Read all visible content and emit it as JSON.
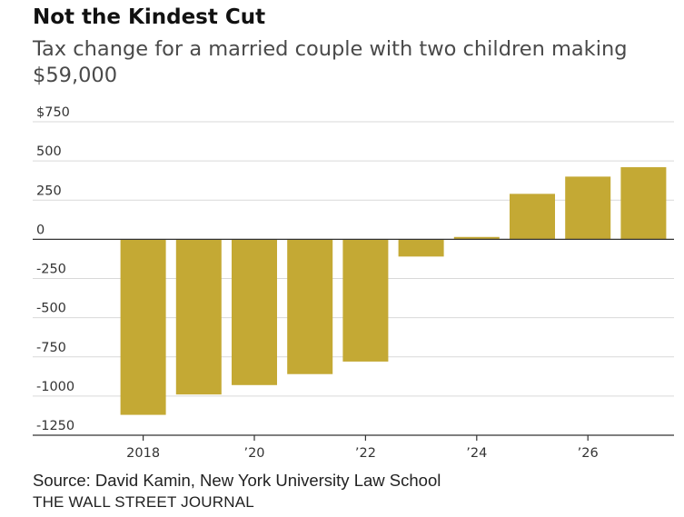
{
  "header": {
    "title": "Not the Kindest Cut",
    "subtitle": "Tax change for a married couple with two children making $59,000"
  },
  "footer": {
    "source": "Source: David Kamin, New York University Law School",
    "publisher": "THE WALL STREET JOURNAL"
  },
  "chart_data": {
    "type": "bar",
    "title": "Not the Kindest Cut",
    "subtitle": "Tax change for a married couple with two children making $59,000",
    "categories": [
      "2018",
      "2019",
      "2020",
      "2021",
      "2022",
      "2023",
      "2024",
      "2025",
      "2026",
      "2027"
    ],
    "x_tick_labels": [
      {
        "category": "2018",
        "label": "2018"
      },
      {
        "category": "2020",
        "label": "’20"
      },
      {
        "category": "2022",
        "label": "’22"
      },
      {
        "category": "2024",
        "label": "’24"
      },
      {
        "category": "2026",
        "label": "’26"
      }
    ],
    "values": [
      -1120,
      -990,
      -930,
      -860,
      -780,
      -110,
      15,
      290,
      400,
      460
    ],
    "y_ticks": [
      {
        "value": 750,
        "label": "$750"
      },
      {
        "value": 500,
        "label": "500"
      },
      {
        "value": 250,
        "label": "250"
      },
      {
        "value": 0,
        "label": "0"
      },
      {
        "value": -250,
        "label": "-250"
      },
      {
        "value": -500,
        "label": "-500"
      },
      {
        "value": -750,
        "label": "-750"
      },
      {
        "value": -1000,
        "label": "-1000"
      },
      {
        "value": -1250,
        "label": "-1250"
      }
    ],
    "ylim": [
      -1250,
      750
    ],
    "xlabel": "",
    "ylabel": "",
    "grid": true,
    "colors": {
      "bar": "#c4a934",
      "grid": "#d9d9d9",
      "axis": "#333333"
    }
  }
}
